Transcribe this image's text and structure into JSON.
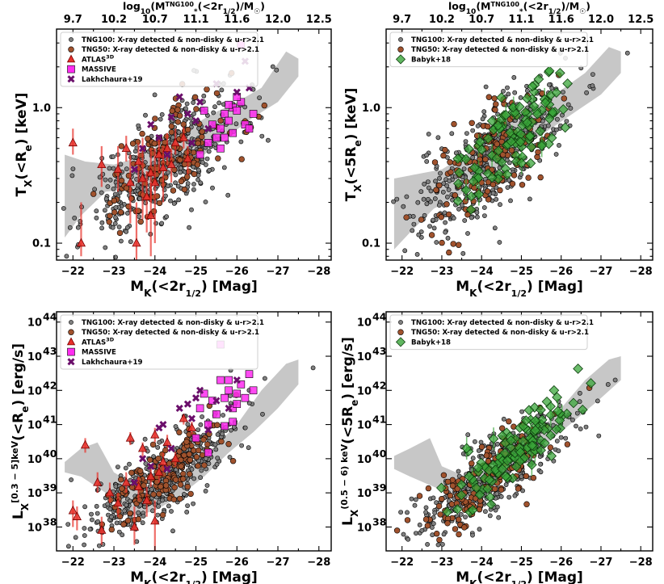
{
  "figure": {
    "top_axis_label": "log10(M*TNG100(<2r1/2)/M☉)",
    "top_axis_ticks": [
      "9.7",
      "10.2",
      "10.7",
      "11.1",
      "11.6",
      "12.0",
      "12.5"
    ]
  },
  "legend": {
    "tng100": "TNG100: X-ray detected & non-disky & u-r>2.1",
    "tng50": "TNG50: X-ray detected & non-disky & u-r>2.1",
    "atlas": "ATLAS",
    "atlas_sup": "3D",
    "massive": "MASSIVE",
    "lakh": "Lakhchaura+19",
    "babyk": "Babyk+18"
  },
  "colors": {
    "tng100": "#808080",
    "tng50": "#a0522d",
    "atlas": "#e8302a",
    "massive": "#ff2cf0",
    "lakh": "#6b0f6b",
    "babyk": "#3aa53a",
    "band": "#bdbdbd"
  },
  "chart_data": [
    {
      "panel": "top-left",
      "type": "scatter",
      "xlabel": "MK(<2r1/2) [Mag]",
      "ylabel": "TX(<Re) [keV]",
      "xlim": [
        -21.6,
        -28.3
      ],
      "ylim": [
        0.075,
        3.8
      ],
      "yscale": "log",
      "xticks": [
        -22,
        -23,
        -24,
        -25,
        -26,
        -27,
        -28
      ],
      "yticks": [
        0.1,
        1.0
      ],
      "ytick_labels": [
        "0.1",
        "1.0"
      ],
      "band_upper": [
        [
          -21.8,
          0.45
        ],
        [
          -22.3,
          0.4
        ],
        [
          -23.0,
          0.38
        ],
        [
          -23.6,
          0.43
        ],
        [
          -24.2,
          0.55
        ],
        [
          -24.8,
          0.7
        ],
        [
          -25.4,
          0.9
        ],
        [
          -26.0,
          1.1
        ],
        [
          -26.6,
          1.4
        ],
        [
          -27.2,
          2.6
        ],
        [
          -27.5,
          2.3
        ]
      ],
      "band_lower": [
        [
          -27.5,
          1.7
        ],
        [
          -27.0,
          1.1
        ],
        [
          -26.4,
          0.85
        ],
        [
          -25.8,
          0.62
        ],
        [
          -25.2,
          0.45
        ],
        [
          -24.6,
          0.34
        ],
        [
          -24.0,
          0.27
        ],
        [
          -23.4,
          0.25
        ],
        [
          -22.8,
          0.24
        ],
        [
          -22.2,
          0.16
        ],
        [
          -21.8,
          0.11
        ]
      ],
      "tng100_seed": 11,
      "tng100_n": 430,
      "tng50_seed": 21,
      "tng50_n": 150,
      "atlas": [
        {
          "x": -22.0,
          "y": 0.55,
          "lo": 0.45,
          "hi": 0.7
        },
        {
          "x": -22.2,
          "y": 0.1,
          "lo": 0.08,
          "hi": 0.2
        },
        {
          "x": -22.7,
          "y": 0.38,
          "lo": 0.26,
          "hi": 0.52
        },
        {
          "x": -23.1,
          "y": 0.35,
          "lo": 0.24,
          "hi": 0.52
        },
        {
          "x": -23.4,
          "y": 0.28,
          "lo": 0.14,
          "hi": 0.45
        },
        {
          "x": -23.55,
          "y": 0.1,
          "lo": 0.06,
          "hi": 0.2
        },
        {
          "x": -23.6,
          "y": 0.4,
          "lo": 0.28,
          "hi": 0.55
        },
        {
          "x": -23.7,
          "y": 0.3,
          "lo": 0.15,
          "hi": 0.6
        },
        {
          "x": -23.8,
          "y": 0.22,
          "lo": 0.12,
          "hi": 0.34
        },
        {
          "x": -23.9,
          "y": 0.33,
          "lo": 0.2,
          "hi": 0.5
        },
        {
          "x": -24.0,
          "y": 0.28,
          "lo": 0.1,
          "hi": 0.5
        },
        {
          "x": -24.1,
          "y": 0.45,
          "lo": 0.33,
          "hi": 0.6
        },
        {
          "x": -24.2,
          "y": 0.36,
          "lo": 0.2,
          "hi": 0.52
        },
        {
          "x": -24.3,
          "y": 0.5,
          "lo": 0.38,
          "hi": 0.65
        },
        {
          "x": -24.5,
          "y": 0.55,
          "lo": 0.45,
          "hi": 0.7
        },
        {
          "x": -24.7,
          "y": 0.6,
          "lo": 0.5,
          "hi": 0.72
        },
        {
          "x": -23.9,
          "y": 0.16,
          "lo": 0.08,
          "hi": 0.28
        },
        {
          "x": -24.4,
          "y": 0.38,
          "lo": 0.28,
          "hi": 0.5
        },
        {
          "x": -23.3,
          "y": 0.5,
          "lo": 0.4,
          "hi": 0.62
        },
        {
          "x": -24.8,
          "y": 0.42,
          "lo": 0.32,
          "hi": 0.52
        }
      ],
      "massive": [
        {
          "x": -25.6,
          "y": 0.7
        },
        {
          "x": -25.7,
          "y": 0.9
        },
        {
          "x": -25.8,
          "y": 0.8
        },
        {
          "x": -25.9,
          "y": 1.0
        },
        {
          "x": -26.0,
          "y": 0.95
        },
        {
          "x": -26.1,
          "y": 1.1
        },
        {
          "x": -25.5,
          "y": 0.6
        },
        {
          "x": -25.3,
          "y": 0.55
        },
        {
          "x": -25.6,
          "y": 0.5
        },
        {
          "x": -25.9,
          "y": 0.65
        },
        {
          "x": -26.2,
          "y": 0.75
        },
        {
          "x": -25.4,
          "y": 0.75
        },
        {
          "x": -25.2,
          "y": 0.95
        },
        {
          "x": -26.0,
          "y": 1.2
        },
        {
          "x": -25.7,
          "y": 0.6
        },
        {
          "x": -26.1,
          "y": 2.9
        },
        {
          "x": -26.3,
          "y": 0.7
        },
        {
          "x": -25.1,
          "y": 0.45
        },
        {
          "x": -25.8,
          "y": 1.05
        },
        {
          "x": -26.4,
          "y": 0.9
        }
      ],
      "lakh": [
        {
          "x": -24.6,
          "y": 1.2
        },
        {
          "x": -24.1,
          "y": 0.6
        },
        {
          "x": -23.9,
          "y": 0.75
        },
        {
          "x": -24.4,
          "y": 0.85
        },
        {
          "x": -24.8,
          "y": 0.9
        },
        {
          "x": -25.1,
          "y": 1.1
        },
        {
          "x": -25.5,
          "y": 1.5
        },
        {
          "x": -26.0,
          "y": 1.3
        },
        {
          "x": -26.3,
          "y": 1.4
        },
        {
          "x": -25.3,
          "y": 0.7
        },
        {
          "x": -24.9,
          "y": 0.55
        },
        {
          "x": -24.3,
          "y": 0.45
        },
        {
          "x": -23.7,
          "y": 0.5
        },
        {
          "x": -26.2,
          "y": 2.2
        },
        {
          "x": -25.0,
          "y": 0.8
        },
        {
          "x": -23.5,
          "y": 0.35
        }
      ]
    },
    {
      "panel": "top-right",
      "type": "scatter",
      "xlabel": "MK(<2r1/2) [Mag]",
      "ylabel": "TX(<5Re) [keV]",
      "xlim": [
        -21.6,
        -28.3
      ],
      "ylim": [
        0.075,
        3.8
      ],
      "yscale": "log",
      "xticks": [
        -22,
        -23,
        -24,
        -25,
        -26,
        -27,
        -28
      ],
      "yticks": [
        0.1,
        1.0
      ],
      "ytick_labels": [
        "0.1",
        "1.0"
      ],
      "band_upper": [
        [
          -21.8,
          0.3
        ],
        [
          -22.3,
          0.32
        ],
        [
          -23.0,
          0.35
        ],
        [
          -23.6,
          0.45
        ],
        [
          -24.2,
          0.62
        ],
        [
          -24.8,
          0.8
        ],
        [
          -25.4,
          1.05
        ],
        [
          -26.0,
          1.35
        ],
        [
          -26.6,
          1.8
        ],
        [
          -27.2,
          2.8
        ],
        [
          -27.5,
          2.6
        ]
      ],
      "band_lower": [
        [
          -27.5,
          1.8
        ],
        [
          -27.0,
          1.25
        ],
        [
          -26.4,
          0.95
        ],
        [
          -25.8,
          0.72
        ],
        [
          -25.2,
          0.55
        ],
        [
          -24.6,
          0.4
        ],
        [
          -24.0,
          0.3
        ],
        [
          -23.4,
          0.22
        ],
        [
          -22.8,
          0.18
        ],
        [
          -22.2,
          0.12
        ],
        [
          -21.8,
          0.09
        ]
      ],
      "tng100_seed": 31,
      "tng100_n": 430,
      "tng50_seed": 41,
      "tng50_n": 150,
      "babyk_seed": 51,
      "babyk_n": 110
    },
    {
      "panel": "bottom-left",
      "type": "scatter",
      "xlabel": "MK(<2r1/2) [Mag]",
      "ylabel": "LX[0.3-5]keV(<Re) [erg/s]",
      "xlim": [
        -21.6,
        -28.3
      ],
      "ylim": [
        2e+37,
        2e+44
      ],
      "yscale": "log",
      "xticks": [
        -22,
        -23,
        -24,
        -25,
        -26,
        -27,
        -28
      ],
      "yticks": [
        38,
        39,
        40,
        41,
        42,
        43,
        44
      ],
      "band_upper": [
        [
          -21.8,
          8e+39
        ],
        [
          -22.2,
          2e+40
        ],
        [
          -22.6,
          3e+40
        ],
        [
          -23.0,
          4e+39
        ],
        [
          -23.6,
          1.5e+39
        ],
        [
          -24.2,
          2e+39
        ],
        [
          -24.8,
          5e+39
        ],
        [
          -25.4,
          2e+40
        ],
        [
          -26.0,
          1e+41
        ],
        [
          -26.6,
          1e+42
        ],
        [
          -27.2,
          6e+42
        ],
        [
          -27.5,
          8e+42
        ]
      ],
      "band_lower": [
        [
          -27.5,
          1.5e+42
        ],
        [
          -27.0,
          3e+41
        ],
        [
          -26.4,
          6e+40
        ],
        [
          -25.8,
          1.5e+40
        ],
        [
          -25.2,
          3e+39
        ],
        [
          -24.6,
          8e+38
        ],
        [
          -24.0,
          3e+38
        ],
        [
          -23.4,
          2e+38
        ],
        [
          -22.8,
          1e+39
        ],
        [
          -22.2,
          3e+39
        ],
        [
          -21.8,
          4e+39
        ]
      ],
      "tng100_seed": 61,
      "tng100_n": 430,
      "tng50_seed": 71,
      "tng50_n": 150,
      "atlas": [
        {
          "x": -22.0,
          "y": 3e+38,
          "lo": 1e+38,
          "hi": 6e+38
        },
        {
          "x": -22.1,
          "y": 2e+38,
          "lo": 8e+37,
          "hi": 4e+38
        },
        {
          "x": -22.3,
          "y": 2.5e+40,
          "lo": 1.5e+40,
          "hi": 4e+40
        },
        {
          "x": -22.6,
          "y": 2e+39,
          "lo": 1e+39,
          "hi": 4e+39
        },
        {
          "x": -22.7,
          "y": 8e+37,
          "lo": 3e+37,
          "hi": 2e+38
        },
        {
          "x": -22.9,
          "y": 1e+39,
          "lo": 5e+38,
          "hi": 2e+39
        },
        {
          "x": -23.1,
          "y": 5e+38,
          "lo": 2e+38,
          "hi": 1e+39
        },
        {
          "x": -23.3,
          "y": 2e+39,
          "lo": 1e+39,
          "hi": 4e+39
        },
        {
          "x": -23.5,
          "y": 1e+38,
          "lo": 3e+37,
          "hi": 4e+38
        },
        {
          "x": -23.6,
          "y": 1.5e+39,
          "lo": 6e+38,
          "hi": 3e+39
        },
        {
          "x": -23.7,
          "y": 2e+40,
          "lo": 1e+40,
          "hi": 3e+40
        },
        {
          "x": -23.8,
          "y": 6e+38,
          "lo": 2e+38,
          "hi": 1.5e+39
        },
        {
          "x": -23.9,
          "y": 3e+39,
          "lo": 1.5e+39,
          "hi": 5e+39
        },
        {
          "x": -24.0,
          "y": 1.5e+38,
          "lo": 2e+37,
          "hi": 6e+38
        },
        {
          "x": -24.1,
          "y": 4e+39,
          "lo": 2e+39,
          "hi": 7e+39
        },
        {
          "x": -24.2,
          "y": 8e+39,
          "lo": 4e+39,
          "hi": 1.5e+40
        },
        {
          "x": -24.3,
          "y": 3e+40,
          "lo": 2e+40,
          "hi": 5e+40
        },
        {
          "x": -24.5,
          "y": 1e+40,
          "lo": 6e+39,
          "hi": 1.6e+40
        },
        {
          "x": -24.7,
          "y": 1.5e+41,
          "lo": 1e+41,
          "hi": 2e+41
        },
        {
          "x": -24.9,
          "y": 8e+40,
          "lo": 5e+40,
          "hi": 1.2e+41
        },
        {
          "x": -23.4,
          "y": 4e+40,
          "lo": 2.5e+40,
          "hi": 6e+40
        },
        {
          "x": -24.0,
          "y": 5e+40,
          "lo": 3e+40,
          "hi": 8e+40
        }
      ],
      "massive": [
        {
          "x": -25.6,
          "y": 2e+42
        },
        {
          "x": -25.7,
          "y": 6e+41
        },
        {
          "x": -25.8,
          "y": 1e+42
        },
        {
          "x": -25.9,
          "y": 3e+41
        },
        {
          "x": -26.0,
          "y": 8e+41
        },
        {
          "x": -26.1,
          "y": 1.5e+42
        },
        {
          "x": -25.5,
          "y": 2e+41
        },
        {
          "x": -25.3,
          "y": 1e+41
        },
        {
          "x": -25.4,
          "y": 5e+41
        },
        {
          "x": -25.9,
          "y": 1.2e+41
        },
        {
          "x": -26.2,
          "y": 6e+41
        },
        {
          "x": -25.2,
          "y": 8e+41
        },
        {
          "x": -25.6,
          "y": 2.2e+43
        },
        {
          "x": -26.0,
          "y": 4e+41
        },
        {
          "x": -25.7,
          "y": 9e+40
        },
        {
          "x": -26.3,
          "y": 3e+42
        },
        {
          "x": -25.1,
          "y": 3e+41
        },
        {
          "x": -25.0,
          "y": 4e+40
        },
        {
          "x": -25.8,
          "y": 2e+42
        },
        {
          "x": -26.4,
          "y": 1e+42
        },
        {
          "x": -25.3,
          "y": 1.5e+40
        }
      ],
      "lakh": [
        {
          "x": -24.6,
          "y": 3e+41
        },
        {
          "x": -24.1,
          "y": 8e+40
        },
        {
          "x": -23.9,
          "y": 6e+39
        },
        {
          "x": -24.4,
          "y": 2e+40
        },
        {
          "x": -24.8,
          "y": 4e+41
        },
        {
          "x": -25.1,
          "y": 1e+42
        },
        {
          "x": -25.5,
          "y": 5e+41
        },
        {
          "x": -26.0,
          "y": 2e+42
        },
        {
          "x": -25.3,
          "y": 7e+40
        },
        {
          "x": -24.9,
          "y": 1.5e+41
        },
        {
          "x": -24.3,
          "y": 5e+39
        },
        {
          "x": -23.7,
          "y": 1e+40
        },
        {
          "x": -25.0,
          "y": 6e+41
        },
        {
          "x": -23.5,
          "y": 2e+39
        },
        {
          "x": -25.8,
          "y": 3e+41
        },
        {
          "x": -24.2,
          "y": 1e+41
        }
      ]
    },
    {
      "panel": "bottom-right",
      "type": "scatter",
      "xlabel": "MK(<2r1/2) [Mag]",
      "ylabel": "LX(0.5-6) keV(<5Re) [erg/s]",
      "xlim": [
        -21.6,
        -28.3
      ],
      "ylim": [
        2e+37,
        2e+44
      ],
      "yscale": "log",
      "xticks": [
        -22,
        -23,
        -24,
        -25,
        -26,
        -27,
        -28
      ],
      "yticks": [
        38,
        39,
        40,
        41,
        42,
        43,
        44
      ],
      "band_upper": [
        [
          -21.8,
          1.2e+40
        ],
        [
          -22.2,
          2e+40
        ],
        [
          -22.7,
          4e+40
        ],
        [
          -23.0,
          6e+39
        ],
        [
          -23.6,
          3e+39
        ],
        [
          -24.2,
          5e+39
        ],
        [
          -24.8,
          1.5e+40
        ],
        [
          -25.4,
          6e+40
        ],
        [
          -26.0,
          3e+41
        ],
        [
          -26.6,
          2e+42
        ],
        [
          -27.2,
          8e+42
        ],
        [
          -27.5,
          1e+43
        ]
      ],
      "band_lower": [
        [
          -27.5,
          2e+42
        ],
        [
          -27.0,
          6e+41
        ],
        [
          -26.4,
          1.5e+41
        ],
        [
          -25.8,
          4e+40
        ],
        [
          -25.2,
          1e+40
        ],
        [
          -24.6,
          3e+39
        ],
        [
          -24.0,
          1e+39
        ],
        [
          -23.4,
          8e+38
        ],
        [
          -22.8,
          1.5e+39
        ],
        [
          -22.2,
          3e+39
        ],
        [
          -21.8,
          5e+39
        ]
      ],
      "tng100_seed": 81,
      "tng100_n": 430,
      "tng50_seed": 91,
      "tng50_n": 150,
      "babyk_seed": 101,
      "babyk_n": 120
    }
  ]
}
